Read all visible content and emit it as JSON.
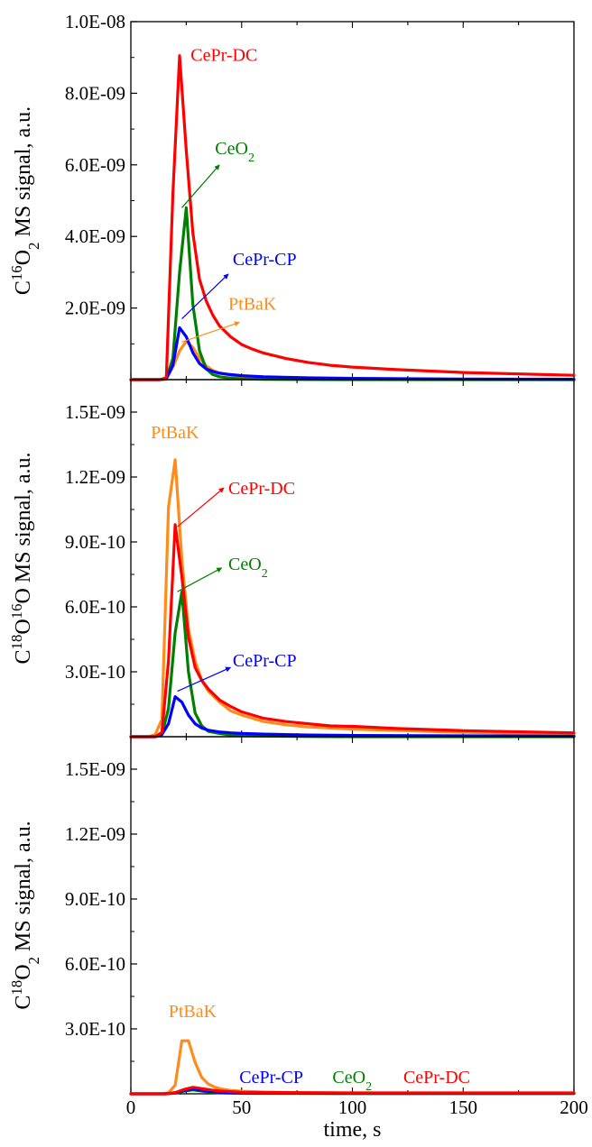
{
  "colors": {
    "CePr-DC": "#ff0000",
    "CeO2": "#008000",
    "CePr-CP": "#0000ff",
    "PtBaK": "#ff8c1a"
  },
  "chart_data": [
    {
      "type": "line",
      "ylabel_parts": [
        "C",
        "16",
        "O",
        "2",
        " MS signal, a.u."
      ],
      "ylabel_style": [
        "n",
        "sup",
        "n",
        "sub",
        "n"
      ],
      "xlim": [
        0,
        200
      ],
      "ylim": [
        0,
        1e-08
      ],
      "yticks": [
        {
          "value": 2e-09,
          "label": "2.0E-09"
        },
        {
          "value": 4e-09,
          "label": "4.0E-09"
        },
        {
          "value": 6e-09,
          "label": "6.0E-09"
        },
        {
          "value": 8e-09,
          "label": "8.0E-09"
        },
        {
          "value": 1e-08,
          "label": "1.0E-08"
        }
      ],
      "series": [
        {
          "name": "PtBaK",
          "x": [
            0,
            13,
            16,
            19,
            22,
            25,
            28,
            31,
            34,
            37,
            40,
            45,
            50,
            60,
            80,
            100,
            150,
            200
          ],
          "y": [
            0,
            0,
            1e-11,
            3.5e-10,
            8e-10,
            1.07e-09,
            9e-10,
            6e-10,
            3.8e-10,
            2.6e-10,
            1.9e-10,
            1.2e-10,
            8e-11,
            4e-11,
            1.5e-11,
            8e-12,
            3e-12,
            2e-12
          ]
        },
        {
          "name": "CeO2",
          "x": [
            0,
            13,
            16,
            19,
            22,
            25,
            28,
            31,
            34,
            37,
            40,
            45,
            50,
            60,
            80,
            100,
            150,
            200
          ],
          "y": [
            0,
            0,
            2e-11,
            6e-10,
            3e-09,
            4.8e-09,
            2.1e-09,
            8e-10,
            3e-10,
            1.4e-10,
            8e-11,
            4e-11,
            2e-11,
            8e-12,
            3e-12,
            1e-12,
            0,
            0
          ]
        },
        {
          "name": "CePr-CP",
          "x": [
            0,
            13,
            16,
            19,
            22,
            25,
            28,
            31,
            34,
            37,
            40,
            45,
            50,
            60,
            80,
            100,
            150,
            200
          ],
          "y": [
            0,
            0,
            3e-11,
            4e-10,
            1.45e-09,
            1.2e-09,
            7.5e-10,
            4.5e-10,
            3e-10,
            2.3e-10,
            1.8e-10,
            1.4e-10,
            1.1e-10,
            8e-11,
            5e-11,
            3.5e-11,
            1.5e-11,
            1e-11
          ]
        },
        {
          "name": "CePr-DC",
          "x": [
            0,
            13,
            16,
            19,
            22,
            25,
            28,
            31,
            34,
            37,
            40,
            45,
            50,
            55,
            60,
            70,
            80,
            90,
            100,
            120,
            150,
            200
          ],
          "y": [
            0,
            0,
            5e-11,
            5.2e-09,
            9.05e-09,
            6.4e-09,
            4.1e-09,
            2.8e-09,
            2.2e-09,
            1.8e-09,
            1.5e-09,
            1.2e-09,
            9.8e-10,
            8.5e-10,
            7.4e-10,
            5.9e-10,
            4.8e-10,
            4e-10,
            3.5e-10,
            2.8e-10,
            2e-10,
            1.2e-10
          ]
        }
      ],
      "annotations": [
        {
          "series": "CePr-DC",
          "text_parts": [
            "CePr-DC"
          ],
          "text_style": [
            "n"
          ],
          "label_at": [
            27,
            8.9e-09
          ],
          "arrow": null
        },
        {
          "series": "CeO2",
          "text_parts": [
            "CeO",
            "2"
          ],
          "text_style": [
            "n",
            "sub"
          ],
          "label_at": [
            38,
            6.3e-09
          ],
          "arrow": {
            "from": [
              23,
              4.8e-09
            ],
            "to": [
              40,
              6e-09
            ]
          }
        },
        {
          "series": "CePr-CP",
          "text_parts": [
            "CePr-CP"
          ],
          "text_style": [
            "n"
          ],
          "label_at": [
            46,
            3.2e-09
          ],
          "arrow": {
            "from": [
              23,
              1.7e-09
            ],
            "to": [
              44,
              2.95e-09
            ]
          }
        },
        {
          "series": "PtBaK",
          "text_parts": [
            "PtBaK"
          ],
          "text_style": [
            "n"
          ],
          "label_at": [
            44,
            1.95e-09
          ],
          "arrow": {
            "from": [
              23,
              1.05e-09
            ],
            "to": [
              49,
              1.6e-09
            ]
          }
        }
      ]
    },
    {
      "type": "line",
      "ylabel_parts": [
        "C",
        "18",
        "O",
        "16",
        "O MS signal, a.u."
      ],
      "ylabel_style": [
        "n",
        "sup",
        "n",
        "sup",
        "n"
      ],
      "xlim": [
        0,
        200
      ],
      "ylim": [
        0,
        1.65e-09
      ],
      "yticks": [
        {
          "value": 3e-10,
          "label": "3.0E-10"
        },
        {
          "value": 6e-10,
          "label": "6.0E-10"
        },
        {
          "value": 9e-10,
          "label": "9.0E-10"
        },
        {
          "value": 1.2e-09,
          "label": "1.2E-09"
        },
        {
          "value": 1.5e-09,
          "label": "1.5E-09"
        }
      ],
      "series": [
        {
          "name": "PtBaK",
          "x": [
            0,
            8,
            11,
            14,
            17,
            20,
            23,
            26,
            29,
            32,
            35,
            40,
            45,
            50,
            60,
            70,
            80,
            100,
            150,
            200
          ],
          "y": [
            0,
            0,
            1e-11,
            8e-11,
            1.06e-09,
            1.28e-09,
            8.2e-10,
            5e-10,
            3.5e-10,
            2.6e-10,
            2.1e-10,
            1.6e-10,
            1.2e-10,
            1e-10,
            7e-11,
            5.5e-11,
            4.5e-11,
            3.5e-11,
            2e-11,
            1.2e-11
          ]
        },
        {
          "name": "CeO2",
          "x": [
            0,
            11,
            14,
            17,
            20,
            23,
            26,
            29,
            32,
            35,
            40,
            45,
            50,
            60,
            80,
            100,
            150,
            200
          ],
          "y": [
            0,
            0,
            1e-11,
            1.3e-10,
            4.8e-10,
            6.7e-10,
            3e-10,
            1.1e-10,
            5e-11,
            2.5e-11,
            1.5e-11,
            8e-12,
            5e-12,
            3e-12,
            1e-12,
            0,
            0,
            0
          ]
        },
        {
          "name": "CePr-CP",
          "x": [
            0,
            11,
            14,
            17,
            20,
            23,
            26,
            29,
            32,
            35,
            40,
            45,
            50,
            60,
            80,
            100,
            150,
            200
          ],
          "y": [
            0,
            0,
            1e-11,
            6e-11,
            1.85e-10,
            1.6e-10,
            1e-10,
            6e-11,
            4e-11,
            3e-11,
            2.2e-11,
            1.8e-11,
            1.5e-11,
            1.2e-11,
            8e-12,
            6e-12,
            4e-12,
            3e-12
          ]
        },
        {
          "name": "CePr-DC",
          "x": [
            0,
            11,
            14,
            17,
            20,
            23,
            26,
            29,
            32,
            35,
            40,
            45,
            50,
            55,
            60,
            70,
            80,
            90,
            100,
            120,
            150,
            200
          ],
          "y": [
            0,
            0,
            2e-11,
            3.5e-10,
            9.8e-10,
            7.4e-10,
            4.6e-10,
            3.2e-10,
            2.6e-10,
            2.2e-10,
            1.7e-10,
            1.4e-10,
            1.15e-10,
            1e-10,
            8.5e-11,
            7e-11,
            6e-11,
            5e-11,
            4.8e-11,
            3.8e-11,
            2.8e-11,
            1.8e-11
          ]
        }
      ],
      "annotations": [
        {
          "series": "PtBaK",
          "text_parts": [
            "PtBaK"
          ],
          "text_style": [
            "n"
          ],
          "label_at": [
            9,
            1.38e-09
          ],
          "arrow": null
        },
        {
          "series": "CePr-DC",
          "text_parts": [
            "CePr-DC"
          ],
          "text_style": [
            "n"
          ],
          "label_at": [
            44,
            1.12e-09
          ],
          "arrow": {
            "from": [
              21,
              9.7e-10
            ],
            "to": [
              42,
              1.15e-09
            ]
          }
        },
        {
          "series": "CeO2",
          "text_parts": [
            "CeO",
            "2"
          ],
          "text_style": [
            "n",
            "sub"
          ],
          "label_at": [
            44,
            7.7e-10
          ],
          "arrow": {
            "from": [
              21,
              6.7e-10
            ],
            "to": [
              41,
              7.8e-10
            ]
          }
        },
        {
          "series": "CePr-CP",
          "text_parts": [
            "CePr-CP"
          ],
          "text_style": [
            "n"
          ],
          "label_at": [
            46,
            3.25e-10
          ],
          "arrow": {
            "from": [
              21,
              2.1e-10
            ],
            "to": [
              45,
              3.2e-10
            ]
          }
        }
      ]
    },
    {
      "type": "line",
      "ylabel_parts": [
        "C",
        "18",
        "O",
        "2",
        " MS signal, a.u."
      ],
      "ylabel_style": [
        "n",
        "sup",
        "n",
        "sub",
        "n"
      ],
      "xlim": [
        0,
        200
      ],
      "ylim": [
        0,
        1.65e-09
      ],
      "xlabel": "time, s",
      "xticks": [
        {
          "value": 0,
          "label": "0"
        },
        {
          "value": 50,
          "label": "50"
        },
        {
          "value": 100,
          "label": "100"
        },
        {
          "value": 150,
          "label": "150"
        },
        {
          "value": 200,
          "label": "200"
        }
      ],
      "yticks": [
        {
          "value": 3e-10,
          "label": "3.0E-10"
        },
        {
          "value": 6e-10,
          "label": "6.0E-10"
        },
        {
          "value": 9e-10,
          "label": "9.0E-10"
        },
        {
          "value": 1.2e-09,
          "label": "1.2E-09"
        },
        {
          "value": 1.5e-09,
          "label": "1.5E-09"
        }
      ],
      "series": [
        {
          "name": "PtBaK",
          "x": [
            0,
            14,
            17,
            20,
            23,
            26,
            29,
            32,
            35,
            38,
            41,
            45,
            50,
            60,
            80,
            100,
            150,
            200
          ],
          "y": [
            0,
            0,
            5e-12,
            4e-11,
            2.45e-10,
            2.45e-10,
            1.45e-10,
            7.5e-11,
            4.5e-11,
            3e-11,
            2.2e-11,
            1.6e-11,
            1.2e-11,
            8e-12,
            5e-12,
            4e-12,
            3e-12,
            3e-12
          ]
        },
        {
          "name": "CeO2",
          "x": [
            0,
            16,
            20,
            24,
            28,
            32,
            36,
            40,
            50,
            100,
            200
          ],
          "y": [
            0,
            0,
            3e-12,
            1.2e-11,
            1.8e-11,
            1.2e-11,
            7e-12,
            4e-12,
            2e-12,
            1e-12,
            1e-12
          ]
        },
        {
          "name": "CePr-CP",
          "x": [
            0,
            16,
            20,
            24,
            28,
            32,
            36,
            40,
            50,
            100,
            200
          ],
          "y": [
            0,
            0,
            5e-12,
            1.5e-11,
            2.2e-11,
            1.6e-11,
            1e-11,
            7e-12,
            4e-12,
            2e-12,
            2e-12
          ]
        },
        {
          "name": "CePr-DC",
          "x": [
            0,
            16,
            20,
            24,
            28,
            32,
            36,
            40,
            50,
            100,
            200
          ],
          "y": [
            0,
            0,
            6e-12,
            2e-11,
            3e-11,
            2.4e-11,
            1.8e-11,
            1.3e-11,
            7e-12,
            4e-12,
            4e-12
          ]
        }
      ],
      "annotations": [
        {
          "series": "PtBaK",
          "text_parts": [
            "PtBaK"
          ],
          "text_style": [
            "n"
          ],
          "label_at": [
            17,
            3.55e-10
          ],
          "arrow": null
        },
        {
          "series": "CePr-CP",
          "text_parts": [
            "CePr-CP"
          ],
          "text_style": [
            "n"
          ],
          "label_at": [
            49,
            5e-11
          ],
          "arrow": null
        },
        {
          "series": "CeO2",
          "text_parts": [
            "CeO",
            "2"
          ],
          "text_style": [
            "n",
            "sub"
          ],
          "label_at": [
            91,
            5e-11
          ],
          "arrow": null
        },
        {
          "series": "CePr-DC",
          "text_parts": [
            "CePr-DC"
          ],
          "text_style": [
            "n"
          ],
          "label_at": [
            123,
            5e-11
          ],
          "arrow": null
        }
      ]
    }
  ]
}
